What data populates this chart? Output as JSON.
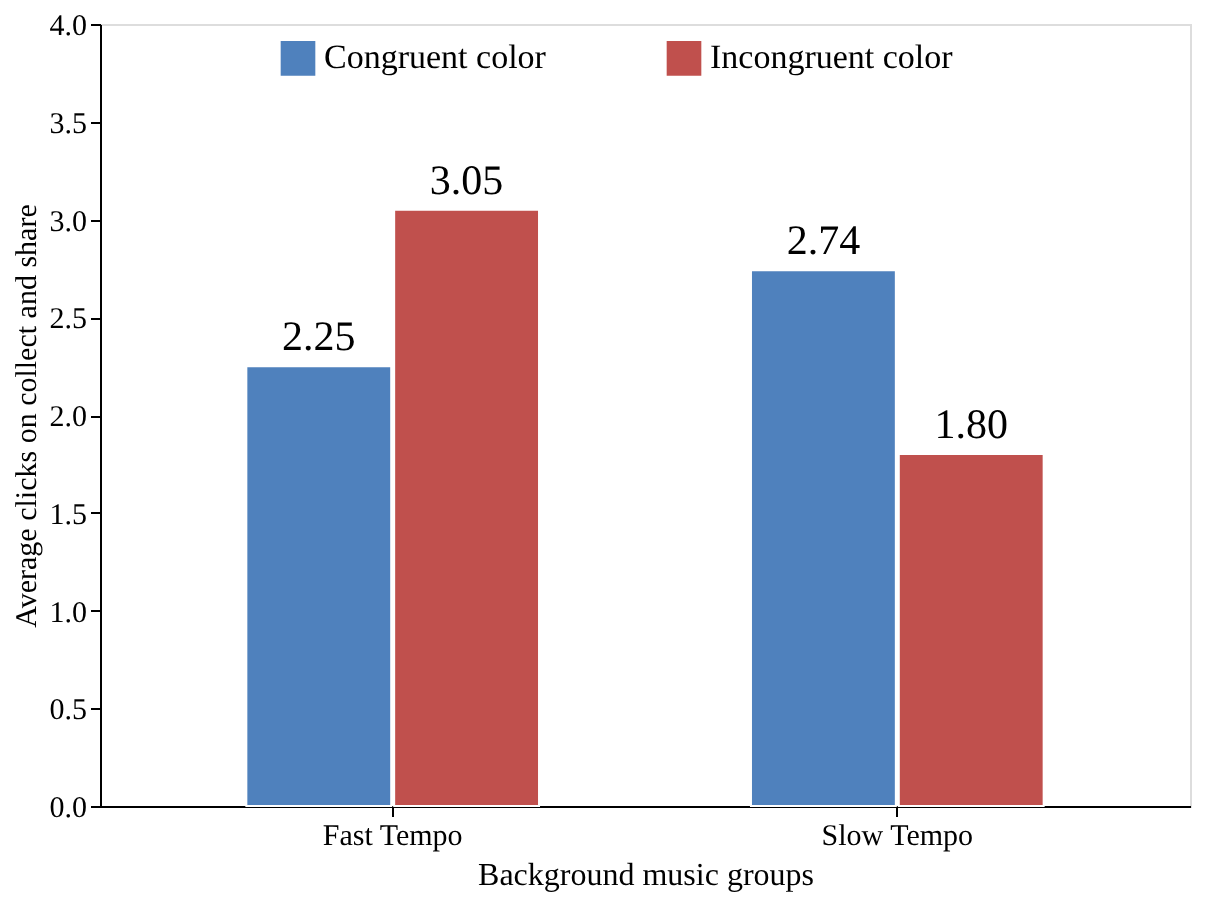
{
  "chart_data": {
    "type": "bar",
    "xlabel": "Background music groups",
    "ylabel": "Average clicks on collect and share",
    "categories": [
      "Fast Tempo",
      "Slow Tempo"
    ],
    "series": [
      {
        "name": "Congruent color",
        "color": "#4f81bd",
        "values": [
          2.25,
          2.74
        ],
        "value_labels": [
          "2.25",
          "2.74"
        ]
      },
      {
        "name": "Incongruent color",
        "color": "#c0504d",
        "values": [
          3.05,
          1.8
        ],
        "value_labels": [
          "3.05",
          "1.80"
        ]
      }
    ],
    "ylim": [
      0,
      4
    ],
    "yticks": [
      {
        "value": 0,
        "label": "0.0"
      },
      {
        "value": 0.5,
        "label": "0.5"
      },
      {
        "value": 1,
        "label": "1.0"
      },
      {
        "value": 1.5,
        "label": "1.5"
      },
      {
        "value": 2,
        "label": "2.0"
      },
      {
        "value": 2.5,
        "label": "2.5"
      },
      {
        "value": 3,
        "label": "3.0"
      },
      {
        "value": 3.5,
        "label": "3.5"
      },
      {
        "value": 4,
        "label": "4.0"
      }
    ],
    "grid": false,
    "legend": "top"
  }
}
